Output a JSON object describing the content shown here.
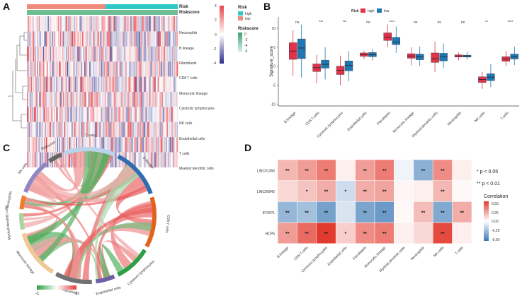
{
  "panels": {
    "A": "A",
    "B": "B",
    "C": "C",
    "D": "D"
  },
  "panel_a": {
    "annotations": {
      "risk": "Risk",
      "riskscore": "Riskscore"
    },
    "rows": [
      "Neutrophils",
      "B lineage",
      "Fibroblasts",
      "CD8 T cells",
      "Monocytic lineage",
      "Cytotoxic lymphocytes",
      "NK cells",
      "Endothelial cells",
      "T cells",
      "Myeloid dendritic cells"
    ],
    "color_scale": {
      "ticks": [
        "4",
        "2",
        "0",
        "-2",
        "-4"
      ],
      "high": "#e8464b",
      "mid": "#ffffff",
      "low": "#2e2e8a"
    },
    "risk_legend": {
      "title": "Risk",
      "items": [
        {
          "label": "high",
          "color": "#2fc9c8"
        },
        {
          "label": "low",
          "color": "#f08a7a"
        }
      ]
    },
    "riskscore_legend": {
      "title": "Riskscore",
      "ticks": [
        "0",
        "-2",
        "-4",
        "-6"
      ],
      "top": "#3f9f6e",
      "bottom": "#dff2ea"
    }
  },
  "chart_data": [
    {
      "panel": "B",
      "type": "box",
      "ylabel": "Signature_score",
      "ylim": [
        -10.5,
        13
      ],
      "yticks": [
        "10",
        "5",
        "0",
        "-5",
        "-10"
      ],
      "legend": {
        "title": "Risk",
        "items": [
          {
            "label": "high",
            "color": "#e0324b"
          },
          {
            "label": "low",
            "color": "#1f77b4"
          }
        ]
      },
      "categories": [
        "B.lineage",
        "CD8.T.cells",
        "Cytotoxic.lymphocytes",
        "Endothelial.cells",
        "Fibroblasts",
        "Monocytic.lineage",
        "Myeloid.dendritic.cells",
        "Neutrophils",
        "NK.cells",
        "T.cells"
      ],
      "significance": [
        "ns",
        "***",
        "***",
        "ns",
        "****",
        "ns",
        "ns",
        "ns",
        "**",
        "****"
      ],
      "series": [
        {
          "name": "high",
          "stats": [
            [
              -2.5,
              1.8,
              4.0,
              6.2,
              9.5
            ],
            [
              -4.5,
              -1.4,
              -0.4,
              0.6,
              3.0
            ],
            [
              -5.0,
              -2.2,
              -1.1,
              0.0,
              2.8
            ],
            [
              1.8,
              2.6,
              3.0,
              3.5,
              4.1
            ],
            [
              5.0,
              6.8,
              7.7,
              8.8,
              11.0
            ],
            [
              0.2,
              2.1,
              2.7,
              3.3,
              5.0
            ],
            [
              -1.5,
              1.0,
              2.0,
              3.5,
              6.5
            ],
            [
              1.5,
              2.4,
              2.7,
              3.0,
              3.6
            ],
            [
              -6.0,
              -4.3,
              -3.5,
              -2.8,
              -1.5
            ],
            [
              0.0,
              1.3,
              1.9,
              2.5,
              4.0
            ]
          ]
        },
        {
          "name": "low",
          "stats": [
            [
              -3.0,
              2.0,
              4.8,
              7.2,
              11.0
            ],
            [
              -3.5,
              -0.5,
              0.5,
              1.6,
              5.0
            ],
            [
              -4.0,
              -1.2,
              0.2,
              1.4,
              4.0
            ],
            [
              1.5,
              2.5,
              3.0,
              3.6,
              4.6
            ],
            [
              3.5,
              5.7,
              6.4,
              7.6,
              10.5
            ],
            [
              0.0,
              1.7,
              2.5,
              3.2,
              5.2
            ],
            [
              -0.5,
              1.4,
              2.5,
              3.4,
              6.0
            ],
            [
              1.7,
              2.4,
              2.7,
              2.9,
              3.8
            ],
            [
              -5.5,
              -3.8,
              -2.9,
              -2.0,
              0.5
            ],
            [
              0.3,
              1.9,
              2.5,
              3.2,
              5.2
            ]
          ]
        }
      ]
    },
    {
      "panel": "D",
      "type": "heatmap",
      "rows": [
        "LINC01356",
        "LINC00942",
        "IPO5P1",
        "HCP5"
      ],
      "columns": [
        "B.lineage",
        "CD8.T.cells",
        "Cytotoxic.lymphocytes",
        "Endothelial.cells",
        "Fibroblasts",
        "Monocytic.lineage",
        "Myeloid.dendritic.cells",
        "Neutrophils",
        "NK.cells",
        "T.cells"
      ],
      "values": [
        [
          0.22,
          0.3,
          0.4,
          0.05,
          0.3,
          0.4,
          -0.05,
          -0.35,
          0.35,
          0.05
        ],
        [
          0.12,
          0.18,
          0.25,
          -0.15,
          0.25,
          0.28,
          0.03,
          0.05,
          0.22,
          0.02
        ],
        [
          -0.32,
          -0.28,
          -0.42,
          -0.12,
          -0.4,
          -0.45,
          0.02,
          0.2,
          -0.38,
          0.25
        ],
        [
          0.3,
          0.45,
          0.6,
          0.15,
          0.35,
          0.4,
          0.05,
          0.12,
          0.55,
          0.05
        ]
      ],
      "stars": [
        [
          "**",
          "**",
          "**",
          "",
          "**",
          "**",
          "",
          "**",
          "**",
          ""
        ],
        [
          "",
          "*",
          "**",
          "*",
          "**",
          "**",
          "",
          "",
          "**",
          ""
        ],
        [
          "**",
          "**",
          "**",
          "",
          "**",
          "**",
          "",
          "**",
          "**",
          "**"
        ],
        [
          "**",
          "**",
          "**",
          "*",
          "**",
          "**",
          "",
          "",
          "**",
          ""
        ]
      ],
      "legend": {
        "title": "Correlation",
        "ticks": [
          "0.50",
          "0.25",
          "0.00",
          "-0.25",
          "-0.50"
        ],
        "pos_color": "#e23a2e",
        "neg_color": "#3a78b5"
      },
      "pvalue_notes": [
        "* p < 0.05",
        "** p < 0.01"
      ]
    },
    {
      "panel": "C",
      "type": "chord",
      "sectors": [
        "T cells",
        "B lineage",
        "CD8 T cells",
        "Cytotoxic lymphocytes",
        "Endothelial cells",
        "Fibroblasts",
        "Monocytic lineage",
        "Myeloid dendritic cells",
        "Neutrophils",
        "NK cells",
        "Riskscore"
      ],
      "sector_colors": [
        "#b9d3ec",
        "#2f6db0",
        "#e2621b",
        "#2f9e44",
        "#6b5fa6",
        "#707070",
        "#f0c896",
        "#a8d4a0",
        "#f07c2a",
        "#8f86c4",
        "#666666"
      ],
      "sector_sizes": [
        3.7,
        3.7,
        3.7,
        2.7,
        1.4,
        2.7,
        3.6,
        1.2,
        1.0,
        2.6,
        1.0
      ],
      "scale": {
        "min": "-1",
        "max": "1",
        "min_color": "#2e9e3e",
        "max_color": "#e33b3b"
      }
    }
  ]
}
